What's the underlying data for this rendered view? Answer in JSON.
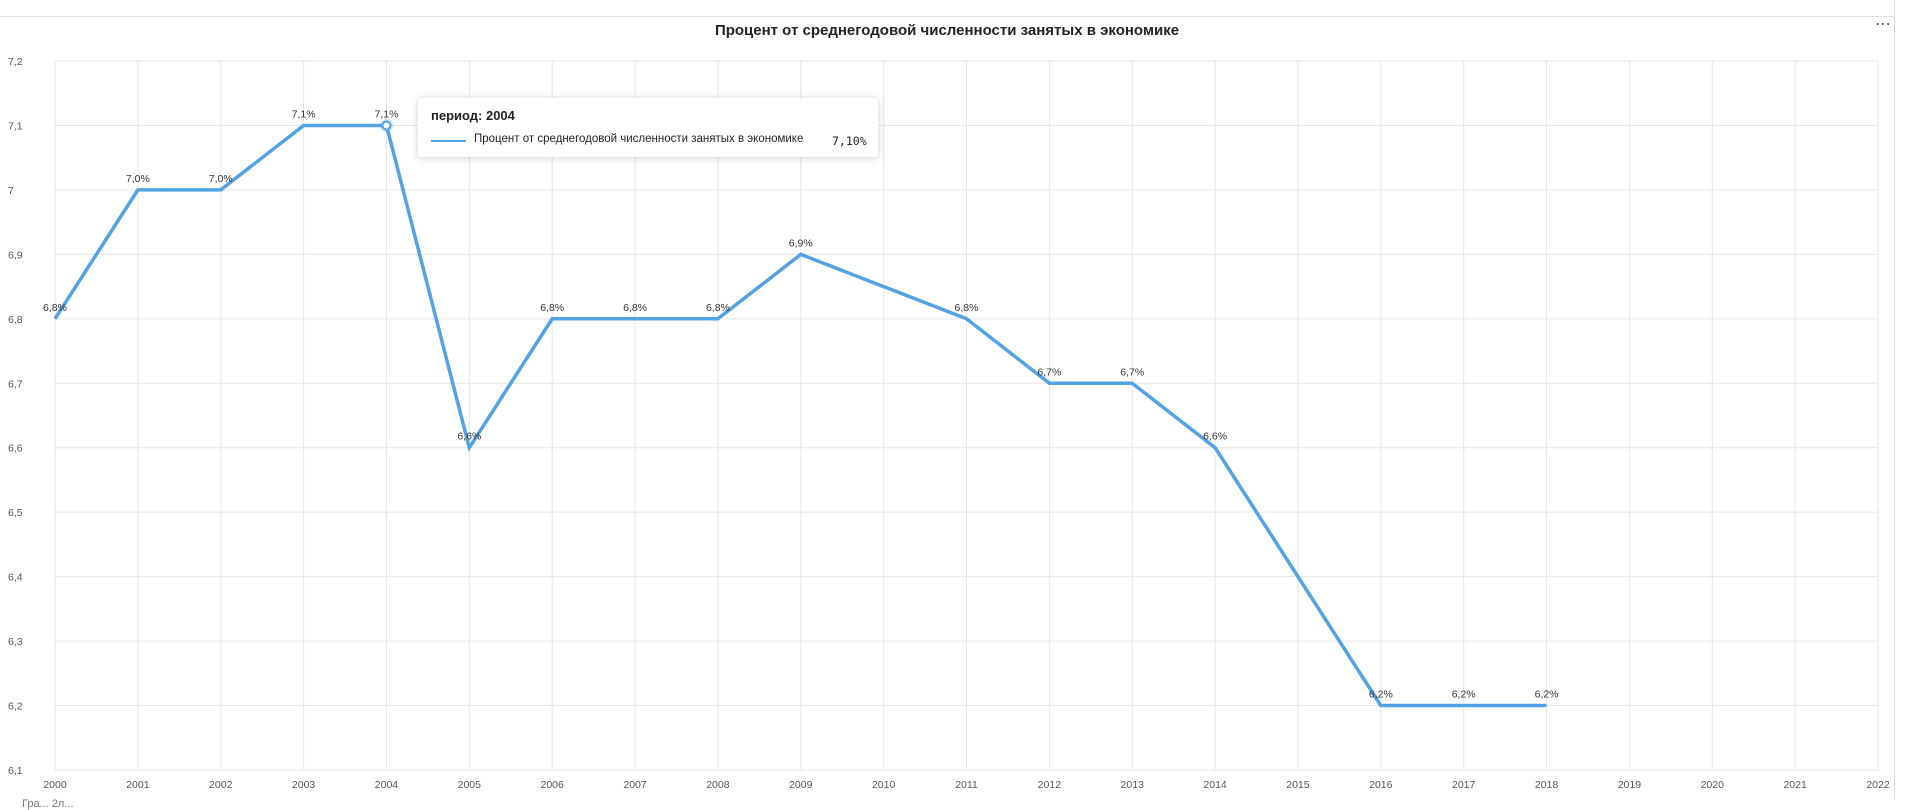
{
  "header": {
    "menu_label": "⋯"
  },
  "tooltip": {
    "title": "период: 2004",
    "series_label": "Процент от среднегодовой численности занятых в экономике",
    "value": "7,10%"
  },
  "footer": {
    "text": "Гра... 2л..."
  },
  "chart_data": {
    "type": "line",
    "title": "Процент от среднегодовой численности занятых в экономике",
    "x": [
      "2000",
      "2001",
      "2002",
      "2003",
      "2004",
      "2005",
      "2006",
      "2007",
      "2008",
      "2009",
      "2010",
      "2011",
      "2012",
      "2013",
      "2014",
      "2015",
      "2016",
      "2017",
      "2018",
      "2019",
      "2020",
      "2021",
      "2022"
    ],
    "series": [
      {
        "values": [
          6.8,
          7.0,
          7.0,
          7.1,
          7.1,
          6.6,
          6.8,
          6.8,
          6.8,
          6.9,
          null,
          6.8,
          6.7,
          6.7,
          6.6,
          null,
          6.2,
          6.2,
          6.2,
          null,
          null,
          null,
          null
        ],
        "data_labels": [
          "6,8%",
          "7,0%",
          "7,0%",
          "7,1%",
          "7,1%",
          "6,6%",
          "6,8%",
          "6,8%",
          "6,8%",
          "6,9%",
          null,
          "6,8%",
          "6,7%",
          "6,7%",
          "6,6%",
          null,
          "6,2%",
          "6,2%",
          "6,2%",
          null,
          null,
          null,
          null
        ],
        "color": "#53a2e4"
      }
    ],
    "y_ticks": [
      "7,2",
      "7,1",
      "7",
      "6,9",
      "6,8",
      "6,7",
      "6,6",
      "6,5",
      "6,4",
      "6,3",
      "6,2",
      "6,1"
    ],
    "ylim": [
      6.1,
      7.2
    ],
    "grid": true,
    "highlighted_period": "2004"
  }
}
